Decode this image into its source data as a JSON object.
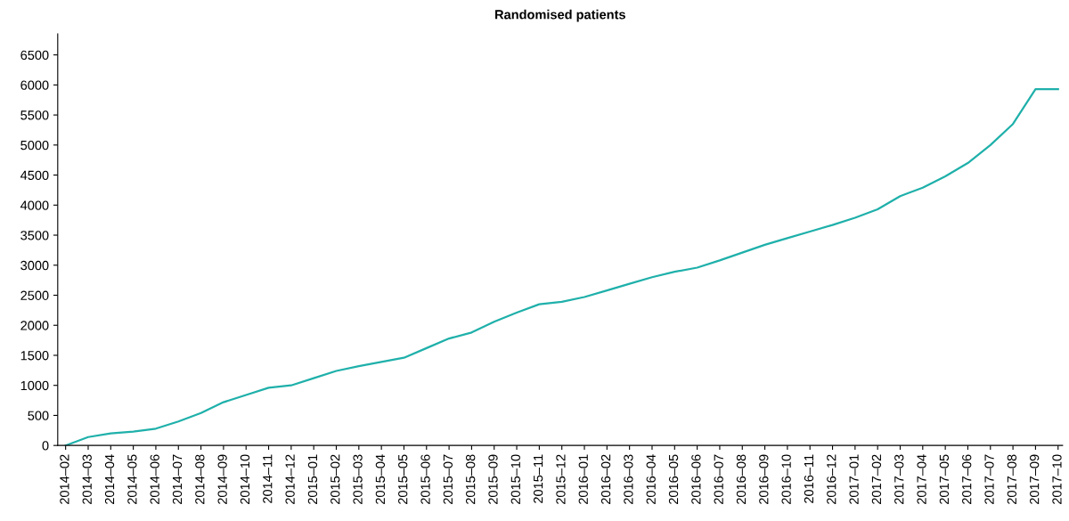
{
  "chart_data": {
    "type": "line",
    "title": "Randomised patients",
    "categories": [
      "2014–02",
      "2014–03",
      "2014–04",
      "2014–05",
      "2014–06",
      "2014–07",
      "2014–08",
      "2014–09",
      "2014–10",
      "2014–11",
      "2014–12",
      "2015–01",
      "2015–02",
      "2015–03",
      "2015–04",
      "2015–05",
      "2015–06",
      "2015–07",
      "2015–08",
      "2015–09",
      "2015–10",
      "2015–11",
      "2015–12",
      "2016–01",
      "2016–02",
      "2016–03",
      "2016–04",
      "2016–05",
      "2016–06",
      "2016–07",
      "2016–08",
      "2016–09",
      "2016–10",
      "2016–11",
      "2016–12",
      "2017–01",
      "2017–02",
      "2017–03",
      "2017–04",
      "2017–05",
      "2017–06",
      "2017–07",
      "2017–08",
      "2017–09",
      "2017–10"
    ],
    "series": [
      {
        "color": "#1fb0aa",
        "values": [
          0,
          140,
          200,
          230,
          280,
          400,
          540,
          720,
          840,
          960,
          1000,
          1120,
          1240,
          1320,
          1390,
          1460,
          1620,
          1780,
          1880,
          2060,
          2210,
          2350,
          2390,
          2470,
          2580,
          2690,
          2800,
          2890,
          2960,
          3080,
          3210,
          3340,
          3450,
          3560,
          3670,
          3790,
          3930,
          4150,
          4290,
          4480,
          4700,
          5000,
          5350,
          5930,
          5930
        ]
      }
    ],
    "ylim": [
      0,
      6850
    ],
    "yticks": [
      0,
      500,
      1000,
      1500,
      2000,
      2500,
      3000,
      3500,
      4000,
      4500,
      5000,
      5500,
      6000,
      6500
    ],
    "grid": false
  }
}
